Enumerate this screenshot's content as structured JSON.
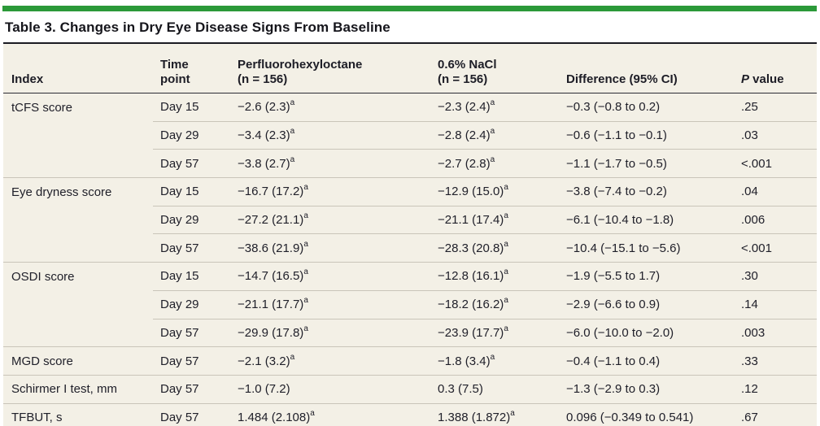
{
  "colors": {
    "accent_green": "#2b9939",
    "panel_bg": "#f3f0e6",
    "text": "#20202a",
    "rule_dark": "#1b1b22",
    "rule_header": "#2c2c34",
    "rule_light": "#c9c5b9"
  },
  "title": "Table 3. Changes in Dry Eye Disease Signs From Baseline",
  "table": {
    "header": [
      {
        "lines": [
          "Index"
        ]
      },
      {
        "lines": [
          "Time",
          "point"
        ]
      },
      {
        "lines": [
          "Perfluorohexyloctane",
          "(n = 156)"
        ]
      },
      {
        "lines": [
          "0.6% NaCl",
          "(n = 156)"
        ]
      },
      {
        "lines": [
          "Difference (95% CI)"
        ]
      },
      {
        "lines": [
          "P value"
        ],
        "italic_prefix": "P"
      }
    ],
    "rows": [
      {
        "index": "tCFS score",
        "group_start": true,
        "time": "Day 15",
        "pfh": "−2.6 (2.3)",
        "pfh_sup": "a",
        "nacl": "−2.3 (2.4)",
        "nacl_sup": "a",
        "diff": "−0.3 (−0.8 to 0.2)",
        "p": ".25"
      },
      {
        "index": "",
        "group_start": false,
        "time": "Day 29",
        "pfh": "−3.4 (2.3)",
        "pfh_sup": "a",
        "nacl": "−2.8 (2.4)",
        "nacl_sup": "a",
        "diff": "−0.6 (−1.1 to −0.1)",
        "p": ".03"
      },
      {
        "index": "",
        "group_start": false,
        "time": "Day 57",
        "pfh": "−3.8 (2.7)",
        "pfh_sup": "a",
        "nacl": "−2.7 (2.8)",
        "nacl_sup": "a",
        "diff": "−1.1 (−1.7 to −0.5)",
        "p": "<.001"
      },
      {
        "index": "Eye dryness score",
        "group_start": true,
        "time": "Day 15",
        "pfh": "−16.7 (17.2)",
        "pfh_sup": "a",
        "nacl": "−12.9 (15.0)",
        "nacl_sup": "a",
        "diff": "−3.8 (−7.4 to −0.2)",
        "p": ".04"
      },
      {
        "index": "",
        "group_start": false,
        "time": "Day 29",
        "pfh": "−27.2 (21.1)",
        "pfh_sup": "a",
        "nacl": "−21.1 (17.4)",
        "nacl_sup": "a",
        "diff": "−6.1 (−10.4 to −1.8)",
        "p": ".006"
      },
      {
        "index": "",
        "group_start": false,
        "time": "Day 57",
        "pfh": "−38.6 (21.9)",
        "pfh_sup": "a",
        "nacl": "−28.3 (20.8)",
        "nacl_sup": "a",
        "diff": "−10.4 (−15.1 to −5.6)",
        "p": "<.001"
      },
      {
        "index": "OSDI score",
        "group_start": true,
        "time": "Day 15",
        "pfh": "−14.7 (16.5)",
        "pfh_sup": "a",
        "nacl": "−12.8 (16.1)",
        "nacl_sup": "a",
        "diff": "−1.9 (−5.5 to 1.7)",
        "p": ".30"
      },
      {
        "index": "",
        "group_start": false,
        "time": "Day 29",
        "pfh": "−21.1 (17.7)",
        "pfh_sup": "a",
        "nacl": "−18.2 (16.2)",
        "nacl_sup": "a",
        "diff": "−2.9 (−6.6 to 0.9)",
        "p": ".14"
      },
      {
        "index": "",
        "group_start": false,
        "time": "Day 57",
        "pfh": "−29.9 (17.8)",
        "pfh_sup": "a",
        "nacl": "−23.9 (17.7)",
        "nacl_sup": "a",
        "diff": "−6.0 (−10.0 to −2.0)",
        "p": ".003"
      },
      {
        "index": "MGD score",
        "group_start": true,
        "time": "Day 57",
        "pfh": "−2.1 (3.2)",
        "pfh_sup": "a",
        "nacl": "−1.8 (3.4)",
        "nacl_sup": "a",
        "diff": "−0.4 (−1.1 to 0.4)",
        "p": ".33"
      },
      {
        "index": "Schirmer I test, mm",
        "group_start": true,
        "time": "Day 57",
        "pfh": "−1.0 (7.2)",
        "pfh_sup": "",
        "nacl": "0.3 (7.5)",
        "nacl_sup": "",
        "diff": "−1.3 (−2.9 to 0.3)",
        "p": ".12"
      },
      {
        "index": "TFBUT, s",
        "group_start": true,
        "time": "Day 57",
        "pfh": "1.484 (2.108)",
        "pfh_sup": "a",
        "nacl": "1.388 (1.872)",
        "nacl_sup": "a",
        "diff": "0.096 (−0.349 to 0.541)",
        "p": ".67"
      }
    ]
  }
}
